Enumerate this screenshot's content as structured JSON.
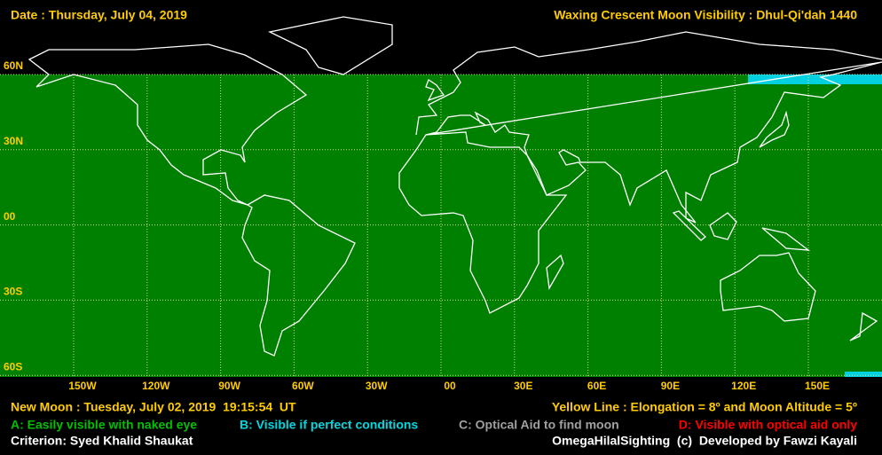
{
  "header": {
    "date": "Date : Thursday, July 04, 2019",
    "title": "Waxing Crescent Moon Visibility : Dhul-Qi'dah 1440"
  },
  "map": {
    "lat_labels": [
      "60N",
      "30N",
      "00",
      "30S",
      "60S"
    ],
    "lon_labels": [
      "150W",
      "120W",
      "90W",
      "60W",
      "30W",
      "00",
      "30E",
      "60E",
      "90E",
      "120E",
      "150E"
    ]
  },
  "footer": {
    "new_moon": "New Moon : Tuesday, July 02, 2019  19:15:54  UT",
    "yellow_line": "Yellow Line : Elongation = 8º and Moon Altitude = 5º",
    "legend": [
      "A: Easily visible with naked eye",
      "B: Visible if perfect conditions",
      "C: Optical Aid to find moon",
      "D: Visible with optical aid only"
    ],
    "criterion": "Criterion: Syed Khalid Shaukat",
    "credit": "OmegaHilalSighting  (c)  Developed by Fawzi Kayali"
  }
}
